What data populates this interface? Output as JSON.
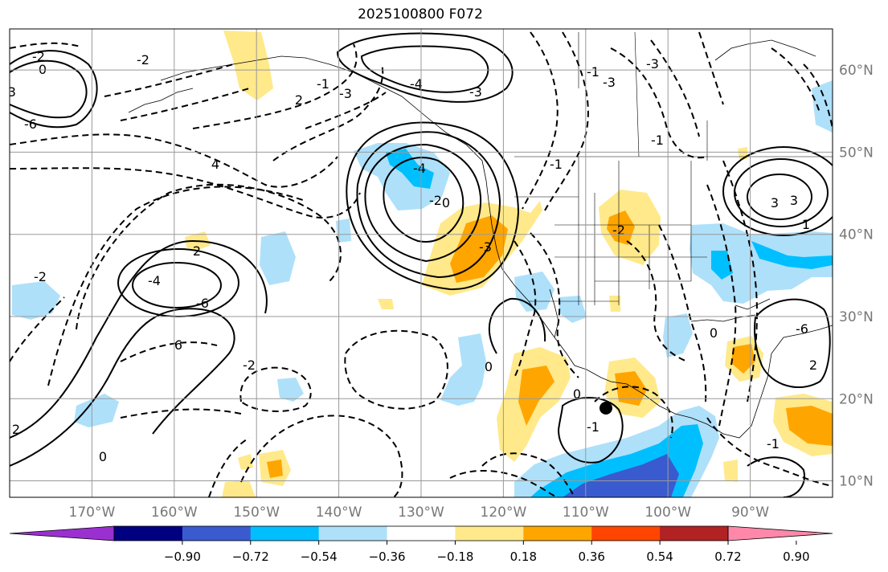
{
  "title": "2025100800 F072",
  "map": {
    "lon_range": [
      -180,
      -80
    ],
    "lat_range": [
      8,
      65
    ],
    "lon_ticks": [
      "170°W",
      "160°W",
      "150°W",
      "140°W",
      "130°W",
      "120°W",
      "110°W",
      "100°W",
      "90°W"
    ],
    "lat_ticks": [
      "10°N",
      "20°N",
      "30°N",
      "40°N",
      "50°N",
      "60°N"
    ],
    "marker": {
      "lon": -107.0,
      "lat": 19.0,
      "color": "#000000"
    },
    "contour_labels": [
      "-2",
      "0",
      "-3",
      "-6",
      "2",
      "-4",
      "-6",
      "6",
      "-2",
      "4",
      "-4",
      "-3",
      "-3",
      "2",
      "-1",
      "-2",
      "-2",
      "2",
      "0",
      "-2",
      "-4",
      "0",
      "-3",
      "-1",
      "-1",
      "-3",
      "-3",
      "-1",
      "-2",
      "1",
      "3",
      "3",
      "-6",
      "2",
      "0",
      "-1",
      "0",
      "-1",
      "0"
    ]
  },
  "colorbar": {
    "tick_labels": [
      "−0.90",
      "−0.72",
      "−0.54",
      "−0.36",
      "−0.18",
      "0.18",
      "0.36",
      "0.54",
      "0.72",
      "0.90"
    ],
    "colors": [
      "#9b30d0",
      "#000080",
      "#3a5bd0",
      "#00bfff",
      "#aee0fa",
      "#ffffff",
      "#ffe98a",
      "#ffa500",
      "#ff4500",
      "#b22222",
      "#ff88aa"
    ]
  }
}
